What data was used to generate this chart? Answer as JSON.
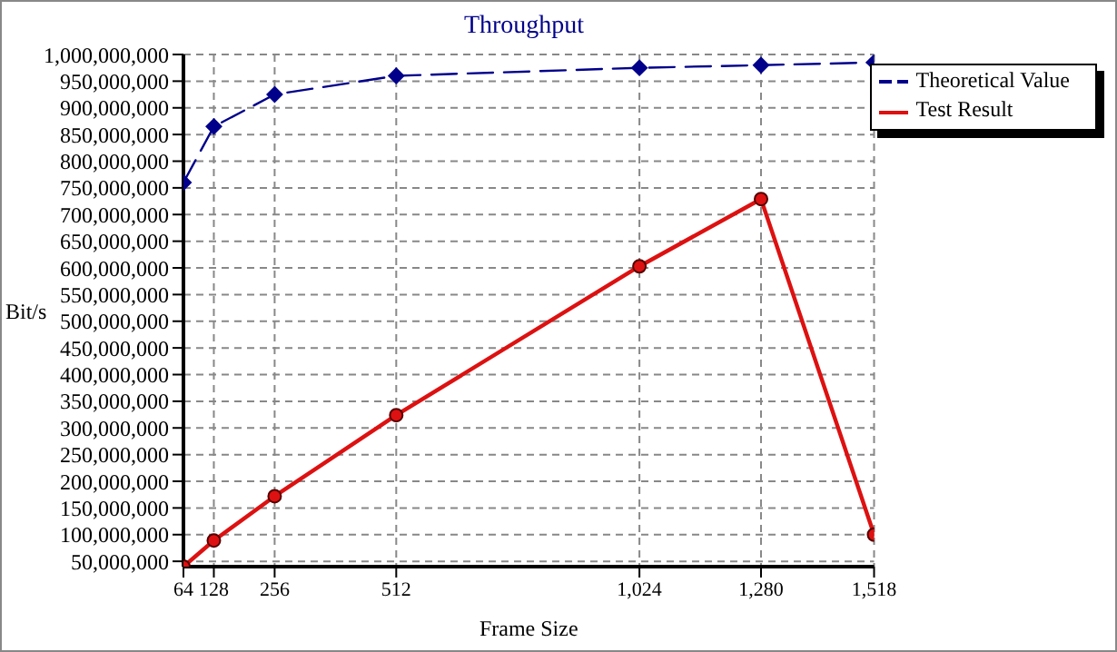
{
  "chart_data": {
    "type": "line",
    "title": "Throughput",
    "xlabel": "Frame Size",
    "ylabel": "Bit/s",
    "x": [
      64,
      128,
      256,
      512,
      1024,
      1280,
      1518
    ],
    "series": [
      {
        "name": "Theoretical Value",
        "color": "#00008b",
        "values": [
          760000000,
          865000000,
          925000000,
          960000000,
          975000000,
          980000000,
          985000000
        ],
        "marker": "diamond",
        "line_style": "dashed"
      },
      {
        "name": "Test Result",
        "color": "#dd1111",
        "values": [
          40000000,
          89000000,
          172000000,
          324000000,
          603000000,
          729000000,
          100000000
        ],
        "marker": "circle",
        "line_style": "solid"
      }
    ],
    "xlim": [
      64,
      1518
    ],
    "xticks": [
      {
        "value": 64,
        "label": "64"
      },
      {
        "value": 128,
        "label": "128"
      },
      {
        "value": 256,
        "label": "256"
      },
      {
        "value": 512,
        "label": "512"
      },
      {
        "value": 1024,
        "label": "1,024"
      },
      {
        "value": 1280,
        "label": "1,280"
      },
      {
        "value": 1518,
        "label": "1,518"
      }
    ],
    "ylim": [
      40000000,
      1000000000
    ],
    "yticks": [
      {
        "value": 50000000,
        "label": "50,000,000"
      },
      {
        "value": 100000000,
        "label": "100,000,000"
      },
      {
        "value": 150000000,
        "label": "150,000,000"
      },
      {
        "value": 200000000,
        "label": "200,000,000"
      },
      {
        "value": 250000000,
        "label": "250,000,000"
      },
      {
        "value": 300000000,
        "label": "300,000,000"
      },
      {
        "value": 350000000,
        "label": "350,000,000"
      },
      {
        "value": 400000000,
        "label": "400,000,000"
      },
      {
        "value": 450000000,
        "label": "450,000,000"
      },
      {
        "value": 500000000,
        "label": "500,000,000"
      },
      {
        "value": 550000000,
        "label": "550,000,000"
      },
      {
        "value": 600000000,
        "label": "600,000,000"
      },
      {
        "value": 650000000,
        "label": "650,000,000"
      },
      {
        "value": 700000000,
        "label": "700,000,000"
      },
      {
        "value": 750000000,
        "label": "750,000,000"
      },
      {
        "value": 800000000,
        "label": "800,000,000"
      },
      {
        "value": 850000000,
        "label": "850,000,000"
      },
      {
        "value": 900000000,
        "label": "900,000,000"
      },
      {
        "value": 950000000,
        "label": "950,000,000"
      },
      {
        "value": 1000000000,
        "label": "1,000,000,000"
      }
    ],
    "grid": true,
    "legend": "right"
  }
}
